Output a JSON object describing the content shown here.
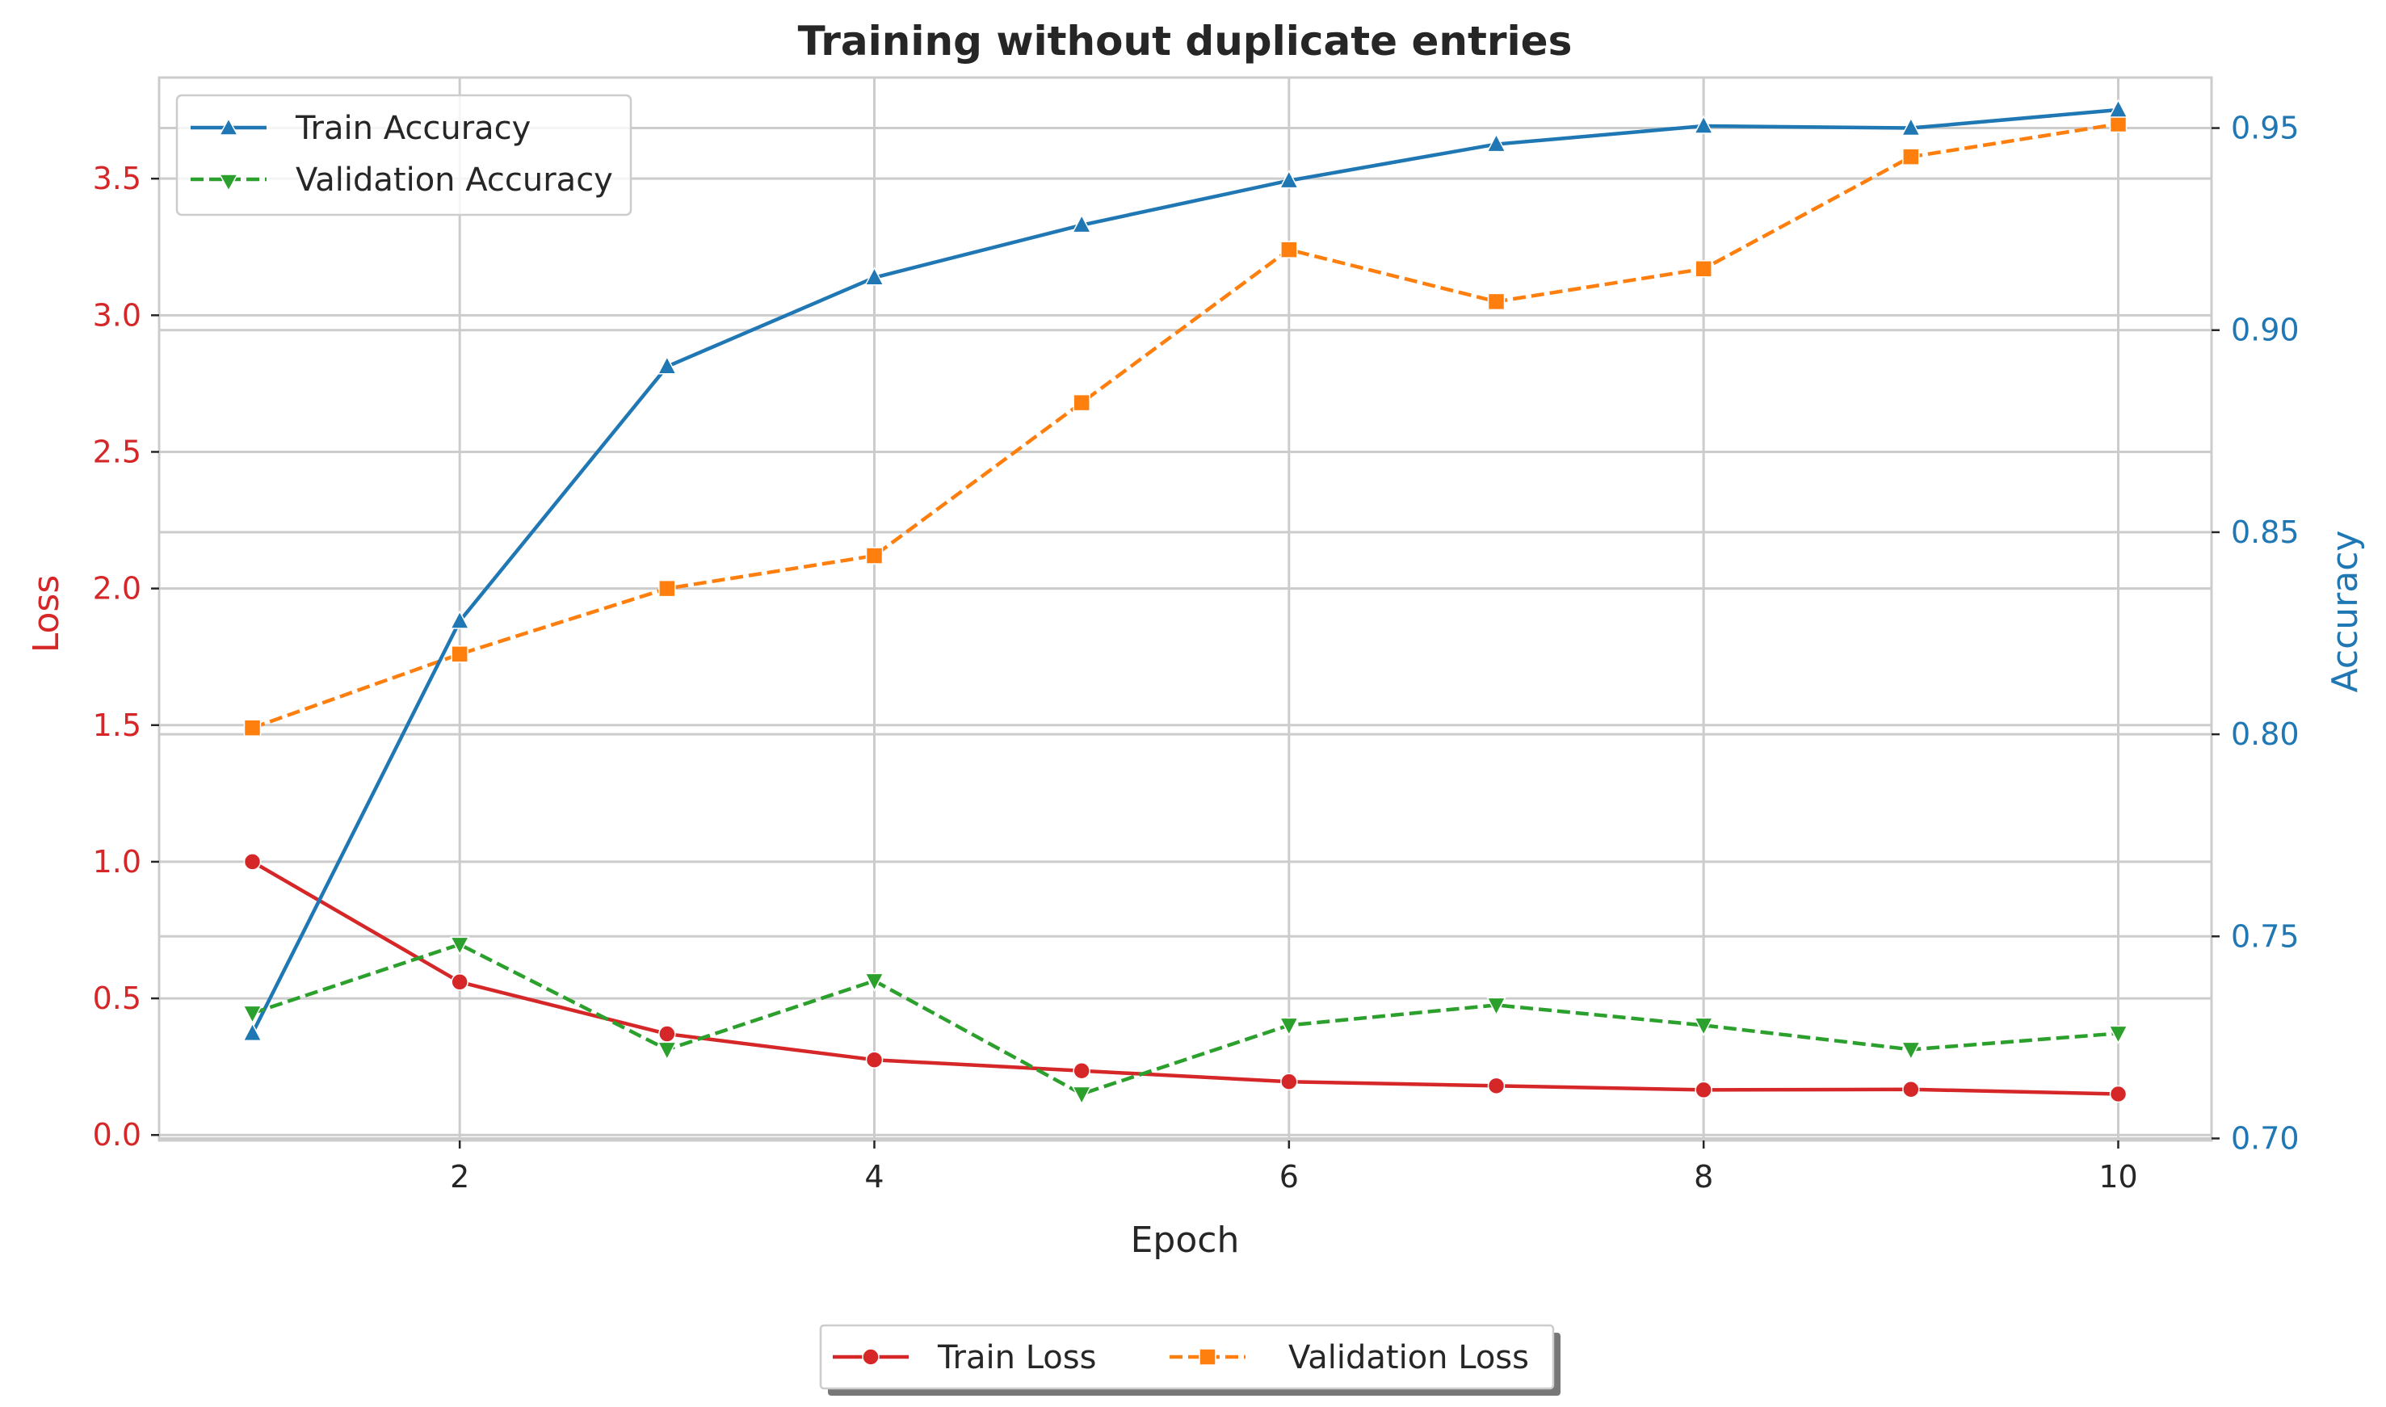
{
  "chart_data": {
    "type": "line",
    "title": "Training without duplicate entries",
    "xlabel": "Epoch",
    "x": [
      1,
      2,
      3,
      4,
      5,
      6,
      7,
      8,
      9,
      10
    ],
    "xlim": [
      0.55,
      10.45
    ],
    "xticks": [
      2,
      4,
      6,
      8,
      10
    ],
    "left_axis": {
      "label": "Loss",
      "color": "#d62728",
      "ylim": [
        -0.02,
        3.87
      ],
      "ticks": [
        "0.0",
        "0.5",
        "1.0",
        "1.5",
        "2.0",
        "2.5",
        "3.0",
        "3.5"
      ]
    },
    "right_axis": {
      "label": "Accuracy",
      "color": "#1f77b4",
      "ylim": [
        0.6995,
        0.9625
      ],
      "ticks": [
        "0.70",
        "0.75",
        "0.80",
        "0.85",
        "0.90",
        "0.95"
      ]
    },
    "series": [
      {
        "name": "Train Loss",
        "axis": "left",
        "color": "#d62728",
        "linestyle": "solid",
        "marker": "circle",
        "values": [
          1.0,
          0.56,
          0.37,
          0.275,
          0.235,
          0.195,
          0.18,
          0.165,
          0.167,
          0.15
        ]
      },
      {
        "name": "Validation Loss",
        "axis": "left",
        "color": "#ff7f0e",
        "linestyle": "dashed",
        "marker": "square",
        "values": [
          1.49,
          1.76,
          2.0,
          2.12,
          2.68,
          3.24,
          3.05,
          3.17,
          3.58,
          3.7
        ]
      },
      {
        "name": "Train Accuracy",
        "axis": "right",
        "color": "#1f77b4",
        "linestyle": "solid",
        "marker": "triangle-up",
        "values": [
          0.726,
          0.828,
          0.891,
          0.913,
          0.926,
          0.937,
          0.946,
          0.9505,
          0.95,
          0.9545
        ]
      },
      {
        "name": "Validation Accuracy",
        "axis": "right",
        "color": "#2ca02c",
        "linestyle": "dashed",
        "marker": "triangle-down",
        "values": [
          0.731,
          0.748,
          0.722,
          0.739,
          0.711,
          0.728,
          0.733,
          0.728,
          0.722,
          0.726
        ]
      }
    ],
    "legends": [
      {
        "placement": "upper-left",
        "entries": [
          "Train Accuracy",
          "Validation Accuracy"
        ]
      },
      {
        "placement": "below-plot-center",
        "entries": [
          "Train Loss",
          "Validation Loss"
        ]
      }
    ],
    "grid": true
  }
}
